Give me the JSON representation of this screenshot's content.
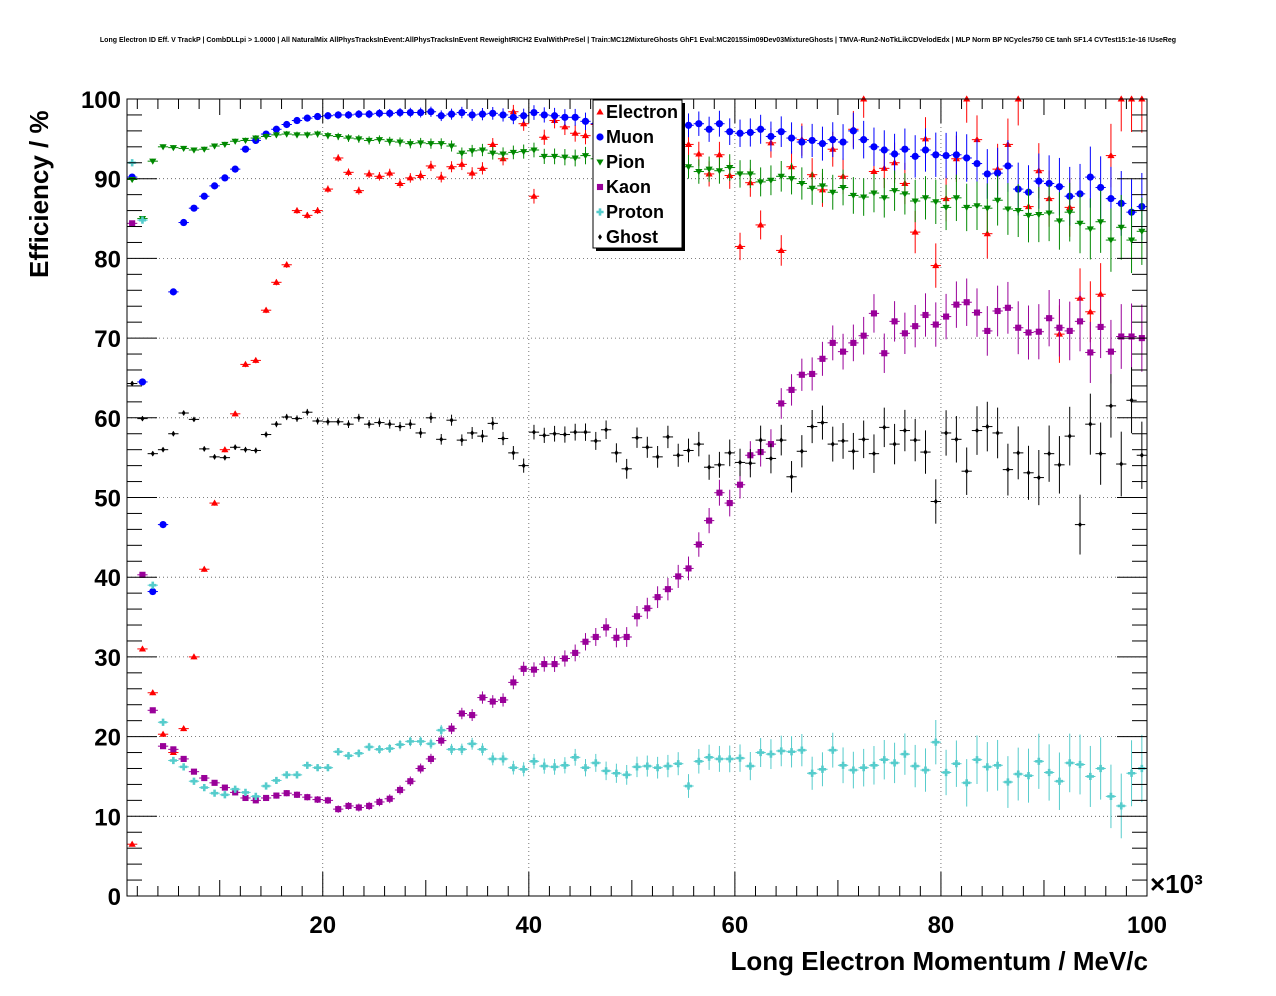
{
  "chart_data": {
    "type": "scatter",
    "title": "Long Electron ID Eff. V TrackP | CombDLLpi > 1.0000 | All NaturalMix AllPhysTracksInEvent:AllPhysTracksInEvent ReweightRICH2 EvalWithPreSel | Train:MC12MixtureGhosts GhF1 Eval:MC2015Sim09Dev03MixtureGhosts | TMVA-Run2-NoTkLikCDVelodEdx | MLP Norm BP NCycles750 CE tanh SF1.4 CVTest15:1e-16 !UseReg",
    "xlabel": "Long Electron Momentum / MeV/c",
    "ylabel": "Efficiency / %",
    "x_multiplier": "×10³",
    "xlim": [
      1000,
      100000
    ],
    "ylim": [
      0,
      100
    ],
    "x_ticks": [
      20000,
      40000,
      60000,
      80000,
      100000
    ],
    "x_tick_labels": [
      "20",
      "40",
      "60",
      "80",
      "100"
    ],
    "y_ticks": [
      0,
      10,
      20,
      30,
      40,
      50,
      60,
      70,
      80,
      90,
      100
    ],
    "y_tick_labels": [
      "0",
      "10",
      "20",
      "30",
      "40",
      "50",
      "60",
      "70",
      "80",
      "90",
      "100"
    ],
    "grid": true,
    "legend_position": "top-center",
    "x": [
      1500,
      2500,
      3500,
      4500,
      5500,
      6500,
      7500,
      8500,
      9500,
      10500,
      11500,
      12500,
      13500,
      14500,
      15500,
      16500,
      17500,
      18500,
      19500,
      20500,
      21500,
      22500,
      23500,
      24500,
      25500,
      26500,
      27500,
      28500,
      29500,
      30500,
      31500,
      32500,
      33500,
      34500,
      35500,
      36500,
      37500,
      38500,
      39500,
      40500,
      41500,
      42500,
      43500,
      44500,
      45500,
      46500,
      47500,
      48500,
      49500,
      50500,
      51500,
      52500,
      53500,
      54500,
      55500,
      56500,
      57500,
      58500,
      59500,
      60500,
      61500,
      62500,
      63500,
      64500,
      65500,
      66500,
      67500,
      68500,
      69500,
      70500,
      71500,
      72500,
      73500,
      74500,
      75500,
      76500,
      77500,
      78500,
      79500,
      80500,
      81500,
      82500,
      83500,
      84500,
      85500,
      86500,
      87500,
      88500,
      89500,
      90500,
      91500,
      92500,
      93500,
      94500,
      95500,
      96500,
      97500,
      98500,
      99500
    ],
    "series": [
      {
        "name": "Electron",
        "color": "#ff0000",
        "marker": "triangle-up",
        "values": [
          6.5,
          31,
          25.5,
          20.3,
          18,
          21,
          30,
          41,
          49.3,
          56,
          60.5,
          66.7,
          67.2,
          73.5,
          77,
          79.2,
          86,
          85.4,
          86,
          88.7,
          92.6,
          90.8,
          88.5,
          90.6,
          90.3,
          90.7,
          89.4,
          90.1,
          90.4,
          91.6,
          90.2,
          91.5,
          91.8,
          90.7,
          91.3,
          94.3,
          92.5,
          98.4,
          96.9,
          87.8,
          95.2,
          97.3,
          96.5,
          95.7,
          95.4,
          96.8,
          95.5,
          93.1,
          94.8,
          97.2,
          95.3,
          95,
          96.5,
          92.7,
          94.3,
          93.1,
          90.6,
          93,
          90.4,
          81.5,
          89.5,
          84.2,
          94.5,
          81,
          91.5,
          94.9,
          90.5,
          88.6,
          93.7,
          90.3,
          96.2,
          100,
          90.9,
          91.3,
          92,
          89.4,
          83.3,
          95,
          79.1,
          87.5,
          92.5,
          100,
          94.9,
          83.1,
          91.2,
          94.3,
          100,
          86.5,
          91,
          87.5,
          70.5,
          86.4,
          75,
          73.3,
          75.5,
          92.9,
          100,
          100,
          100
        ]
      },
      {
        "name": "Muon",
        "color": "#0000ff",
        "marker": "circle",
        "values": [
          90.2,
          64.5,
          38.2,
          46.6,
          75.8,
          84.5,
          86.3,
          87.8,
          89.1,
          90.1,
          91.2,
          93.7,
          94.8,
          95.6,
          96.2,
          96.8,
          97.3,
          97.6,
          97.8,
          97.9,
          98,
          98,
          98.1,
          98.1,
          98.2,
          98.2,
          98.3,
          98.3,
          98.3,
          98.4,
          97.9,
          98.1,
          98.3,
          98,
          98.1,
          98.2,
          98,
          97.7,
          97.9,
          98.3,
          98,
          97.9,
          97.7,
          97.7,
          97.2,
          96.9,
          97.2,
          96.4,
          96.9,
          97.1,
          97.5,
          97.7,
          96.9,
          97.1,
          96.7,
          96.9,
          96.2,
          96.9,
          95.9,
          95.7,
          95.8,
          96.2,
          95.3,
          95.9,
          95.1,
          94.6,
          94.8,
          94.4,
          94.9,
          94.6,
          96,
          94.9,
          94,
          93.6,
          93.1,
          93.7,
          92.8,
          93.6,
          93,
          92.9,
          93,
          92.6,
          91.9,
          90.6,
          90.7,
          91.6,
          88.7,
          88.3,
          89.7,
          89.4,
          89,
          87.8,
          88.1,
          90.2,
          88.9,
          87.5,
          86.9,
          85.8,
          86.5
        ]
      },
      {
        "name": "Pion",
        "color": "#008800",
        "marker": "triangle-down",
        "values": [
          89.9,
          85,
          92.2,
          94,
          93.9,
          93.8,
          93.6,
          93.7,
          94.1,
          94.3,
          94.7,
          94.8,
          95.1,
          95.3,
          95.5,
          95.6,
          95.5,
          95.5,
          95.6,
          95.4,
          95.3,
          95.1,
          95,
          94.8,
          94.9,
          94.7,
          94.6,
          94.4,
          94.5,
          94.4,
          94.4,
          94.1,
          93.2,
          93.5,
          93.6,
          93.2,
          93.1,
          93.3,
          93.4,
          93.6,
          92.8,
          92.8,
          92.7,
          92.6,
          92.9,
          92.5,
          92.7,
          92.1,
          92.6,
          92.1,
          92.1,
          92.4,
          91.9,
          91.7,
          91.5,
          90.9,
          91.2,
          91,
          91.4,
          90.6,
          90.6,
          89.6,
          89.8,
          90.3,
          90,
          89.4,
          88.8,
          89.1,
          88.3,
          88.9,
          87.9,
          87.7,
          88.2,
          87.6,
          88.5,
          88.1,
          87.2,
          87.6,
          87.1,
          86.4,
          87.6,
          86.4,
          86.6,
          86.3,
          87.3,
          86.2,
          86,
          85.4,
          85.5,
          85.7,
          84.7,
          85.8,
          84.4,
          83.7,
          84.6,
          82.3,
          83.9,
          82.3,
          83.4
        ]
      },
      {
        "name": "Kaon",
        "color": "#990099",
        "marker": "square",
        "values": [
          84.4,
          40.3,
          23.3,
          18.8,
          18.4,
          17.2,
          15.6,
          14.8,
          14.2,
          13.6,
          13,
          12.3,
          12,
          12.3,
          12.6,
          12.9,
          12.7,
          12.4,
          12.1,
          12,
          10.9,
          11.3,
          11.1,
          11.3,
          11.8,
          12.2,
          13.3,
          14.4,
          16,
          17.2,
          19.5,
          21,
          22.9,
          22.7,
          24.9,
          24.4,
          24.6,
          26.8,
          28.5,
          28.4,
          29.1,
          29.1,
          29.8,
          30.5,
          31.9,
          32.5,
          33.7,
          32.4,
          32.5,
          35.1,
          36.1,
          37.5,
          38.5,
          40.1,
          41.1,
          44.1,
          47.1,
          50.6,
          49.3,
          51.6,
          55.3,
          55.7,
          56.7,
          61.8,
          63.5,
          65.4,
          65.5,
          67.4,
          69.4,
          68.3,
          69.4,
          70.3,
          73.1,
          68.1,
          72.1,
          70.6,
          71.5,
          72.9,
          71.7,
          72.7,
          74.2,
          74.5,
          73.2,
          70.9,
          73.4,
          73.8,
          71.3,
          70.7,
          70.8,
          72.5,
          71.3,
          70.9,
          72.1,
          68.2,
          71.4,
          68.3,
          70.2,
          70.2,
          70
        ]
      },
      {
        "name": "Proton",
        "color": "#55cccc",
        "marker": "cross",
        "values": [
          92,
          84.8,
          39,
          21.8,
          17,
          16.2,
          14.4,
          13.6,
          12.9,
          12.7,
          13.4,
          13,
          12.5,
          13.8,
          14.5,
          15.2,
          15.2,
          16.4,
          16.1,
          16.1,
          18.1,
          17.6,
          17.9,
          18.7,
          18.4,
          18.5,
          19,
          19.4,
          19.4,
          19.1,
          20.8,
          18.4,
          18.4,
          19.1,
          18.4,
          17.2,
          17.2,
          16.1,
          15.9,
          16.9,
          16.3,
          16.2,
          16.4,
          17.4,
          16.1,
          16.7,
          15.7,
          15.4,
          15.2,
          16.2,
          16.3,
          16.1,
          16.3,
          16.6,
          13.8,
          16.9,
          17.4,
          17.2,
          17.2,
          17.3,
          16.3,
          18,
          17.8,
          18.2,
          18.1,
          18.3,
          15.4,
          15.9,
          18.3,
          16.4,
          15.8,
          16.1,
          16.4,
          17.1,
          16.7,
          17.8,
          16.3,
          15.8,
          19.3,
          15.5,
          16.6,
          14.2,
          17.1,
          16.2,
          16.4,
          14.3,
          15.3,
          15.1,
          16.9,
          15.5,
          14.4,
          16.7,
          16.5,
          15,
          16,
          12.5,
          11.3,
          15.4,
          16
        ]
      },
      {
        "name": "Ghost",
        "color": "#000000",
        "marker": "diamond",
        "values": [
          64.3,
          59.9,
          55.5,
          56,
          58,
          60.6,
          59.8,
          56.1,
          55.1,
          55,
          56.3,
          56,
          55.9,
          57.9,
          59.2,
          60.1,
          59.9,
          60.7,
          59.6,
          59.5,
          59.5,
          59.2,
          60,
          59.2,
          59.4,
          59.2,
          58.9,
          59.2,
          58.1,
          60,
          57.3,
          59.7,
          57.2,
          58.1,
          57.7,
          59.3,
          57.4,
          55.6,
          54,
          58.2,
          57.8,
          58,
          57.9,
          58.2,
          58.2,
          57.1,
          58.5,
          55.6,
          53.6,
          57.5,
          56.3,
          55.1,
          57.6,
          55.3,
          55.9,
          56.7,
          53.8,
          54.1,
          55.6,
          54.4,
          54.3,
          57.2,
          54.9,
          57.2,
          52.6,
          55.8,
          58.9,
          59.4,
          56.7,
          57.1,
          55.8,
          57.3,
          55.5,
          58.8,
          56.7,
          58.4,
          57.2,
          55.7,
          49.5,
          58.1,
          57.3,
          53.3,
          58.4,
          58.9,
          58.1,
          53.5,
          55.6,
          53.1,
          52.5,
          55.5,
          54.1,
          57.7,
          46.6,
          59.2,
          55.5,
          61.5,
          54.2,
          62.2,
          55.3
        ]
      }
    ]
  }
}
